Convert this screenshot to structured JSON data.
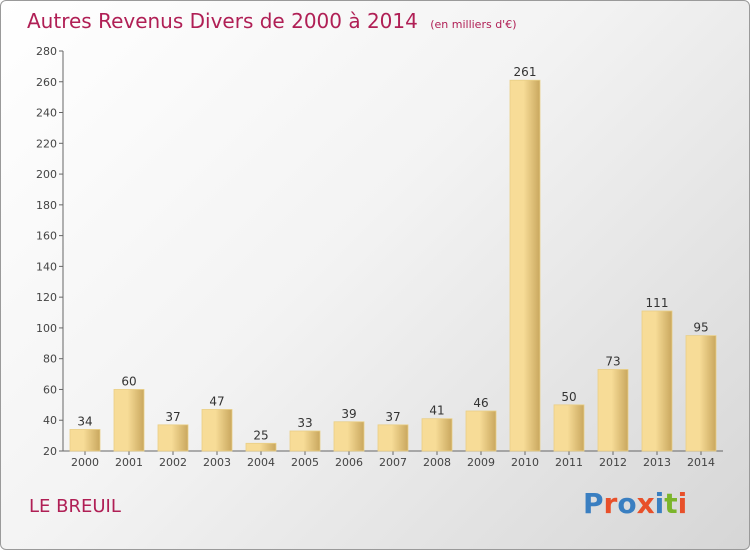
{
  "header": {
    "title": "Autres Revenus Divers de 2000 à 2014",
    "subtitle": "(en milliers d'€)"
  },
  "footer": {
    "place": "LE BREUIL",
    "logo_text": "Proxiti"
  },
  "colors": {
    "title": "#b01f55",
    "bar_light": "#f7dc97",
    "bar_dark": "#c9a75e",
    "logo": [
      "#3a7fc1",
      "#e8502a",
      "#3a7fc1",
      "#e8502a",
      "#3a7fc1",
      "#7bb52b",
      "#e8502a"
    ]
  },
  "chart_data": {
    "type": "bar",
    "categories": [
      "2000",
      "2001",
      "2002",
      "2003",
      "2004",
      "2005",
      "2006",
      "2007",
      "2008",
      "2009",
      "2010",
      "2011",
      "2012",
      "2013",
      "2014"
    ],
    "values": [
      34,
      60,
      37,
      47,
      25,
      33,
      39,
      37,
      41,
      46,
      261,
      50,
      73,
      111,
      95
    ],
    "ylim": [
      20,
      280
    ],
    "yticks": [
      20,
      40,
      60,
      80,
      100,
      120,
      140,
      160,
      180,
      200,
      220,
      240,
      260,
      280
    ],
    "grid": false,
    "legend": "none"
  }
}
